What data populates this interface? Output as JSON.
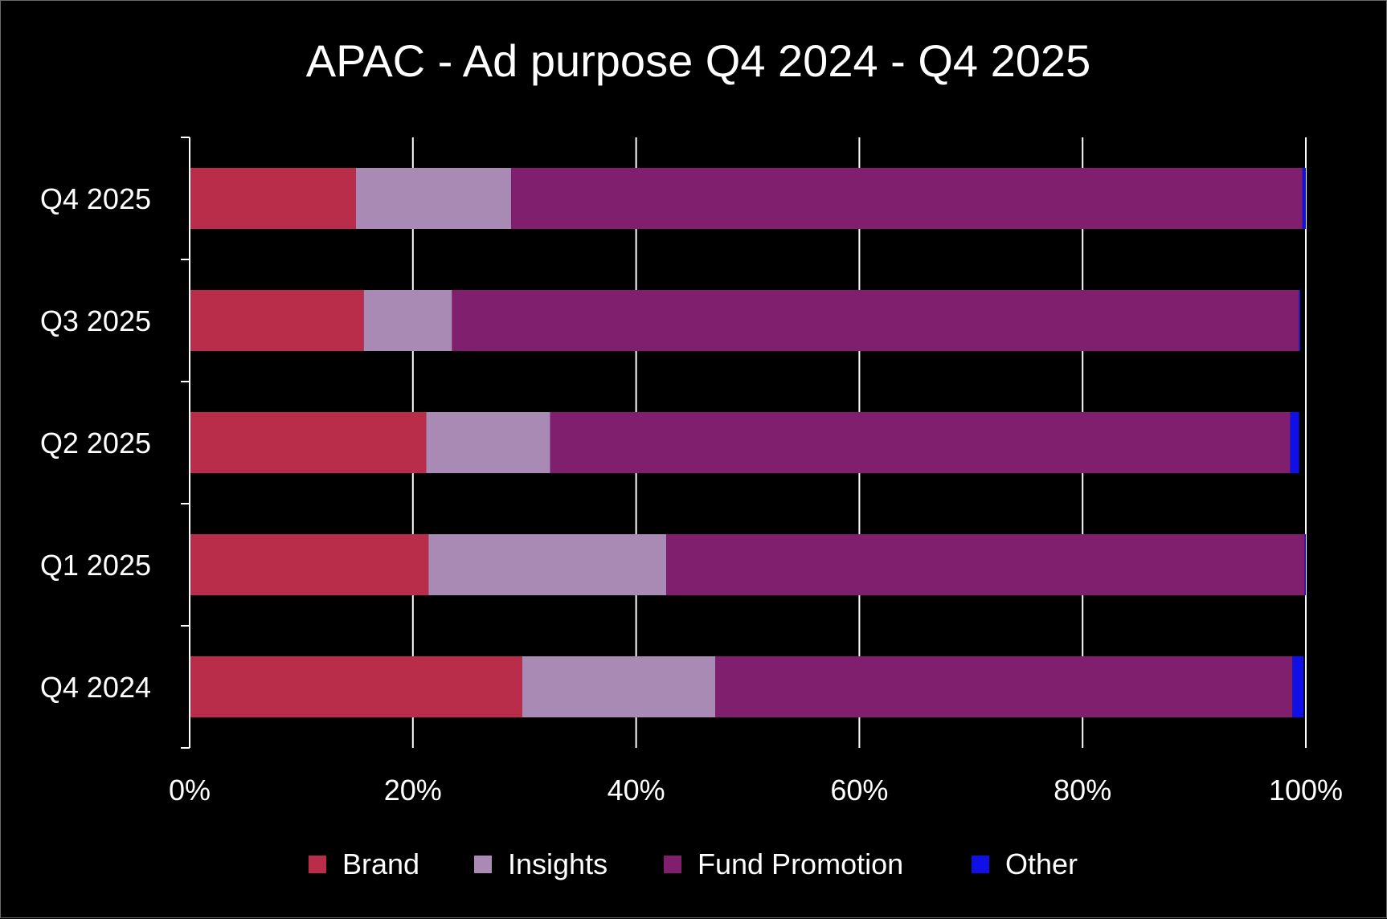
{
  "chart_data": {
    "type": "bar",
    "orientation": "horizontal",
    "stacked": "100%",
    "title": "APAC - Ad purpose Q4 2024 - Q4 2025",
    "xlabel": "",
    "ylabel": "",
    "xlim": [
      0,
      100
    ],
    "x_ticks": [
      "0%",
      "20%",
      "40%",
      "60%",
      "80%",
      "100%"
    ],
    "grid": "vertical",
    "legend_position": "bottom",
    "categories": [
      "Q4 2025",
      "Q3 2025",
      "Q2 2025",
      "Q1 2025",
      "Q4 2024"
    ],
    "series": [
      {
        "name": "Brand",
        "color": "#b92d4b",
        "values": [
          14.9,
          15.6,
          21.2,
          21.4,
          29.8
        ]
      },
      {
        "name": "Insights",
        "color": "#a98ab4",
        "values": [
          13.9,
          7.9,
          11.1,
          21.3,
          17.3
        ]
      },
      {
        "name": "Fund Promotion",
        "color": "#7f1f6d",
        "values": [
          70.9,
          75.9,
          66.3,
          57.2,
          51.7
        ]
      },
      {
        "name": "Other",
        "color": "#1010e6",
        "values": [
          0.3,
          0.1,
          0.8,
          0.1,
          1.0
        ]
      }
    ]
  }
}
